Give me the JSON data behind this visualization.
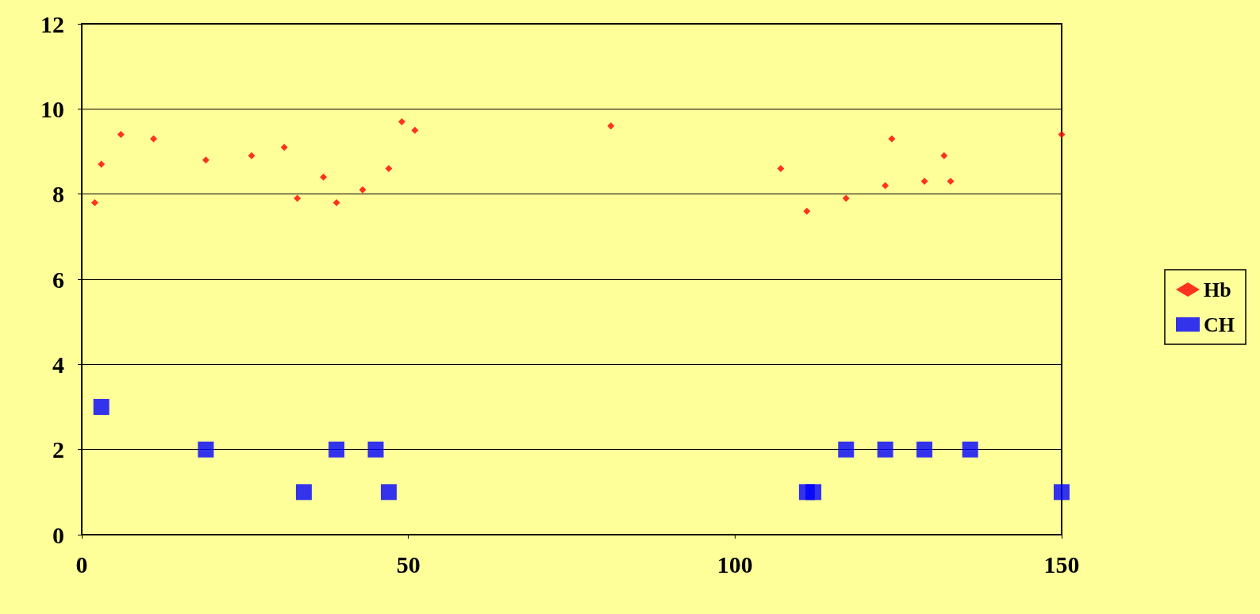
{
  "chart_data": {
    "type": "scatter",
    "xlim": [
      0,
      150
    ],
    "xticks": [
      0,
      50,
      100,
      150
    ],
    "ylim": [
      0,
      12
    ],
    "yticks": [
      0,
      2,
      4,
      6,
      8,
      10,
      12
    ],
    "grid": "y",
    "legend": "right",
    "series": [
      {
        "name": "Hb",
        "color": "#ff0000",
        "marker": "diamond",
        "x": [
          2,
          3,
          6,
          11,
          19,
          26,
          31,
          33,
          37,
          39,
          43,
          47,
          49,
          51,
          81,
          107,
          111,
          117,
          123,
          124,
          129,
          132,
          133,
          150
        ],
        "values": [
          7.8,
          8.7,
          9.4,
          9.3,
          8.8,
          8.9,
          9.1,
          7.9,
          8.4,
          7.8,
          8.1,
          8.6,
          9.7,
          9.5,
          9.6,
          8.6,
          7.6,
          7.9,
          8.2,
          9.3,
          8.3,
          8.9,
          8.3,
          9.4
        ]
      },
      {
        "name": "CH",
        "color": "#0000ff",
        "marker": "square",
        "x": [
          3,
          19,
          34,
          39,
          45,
          47,
          111,
          112,
          117,
          123,
          129,
          136,
          150
        ],
        "values": [
          3,
          2,
          1,
          2,
          2,
          1,
          1,
          1,
          2,
          2,
          2,
          2,
          1
        ]
      }
    ]
  }
}
